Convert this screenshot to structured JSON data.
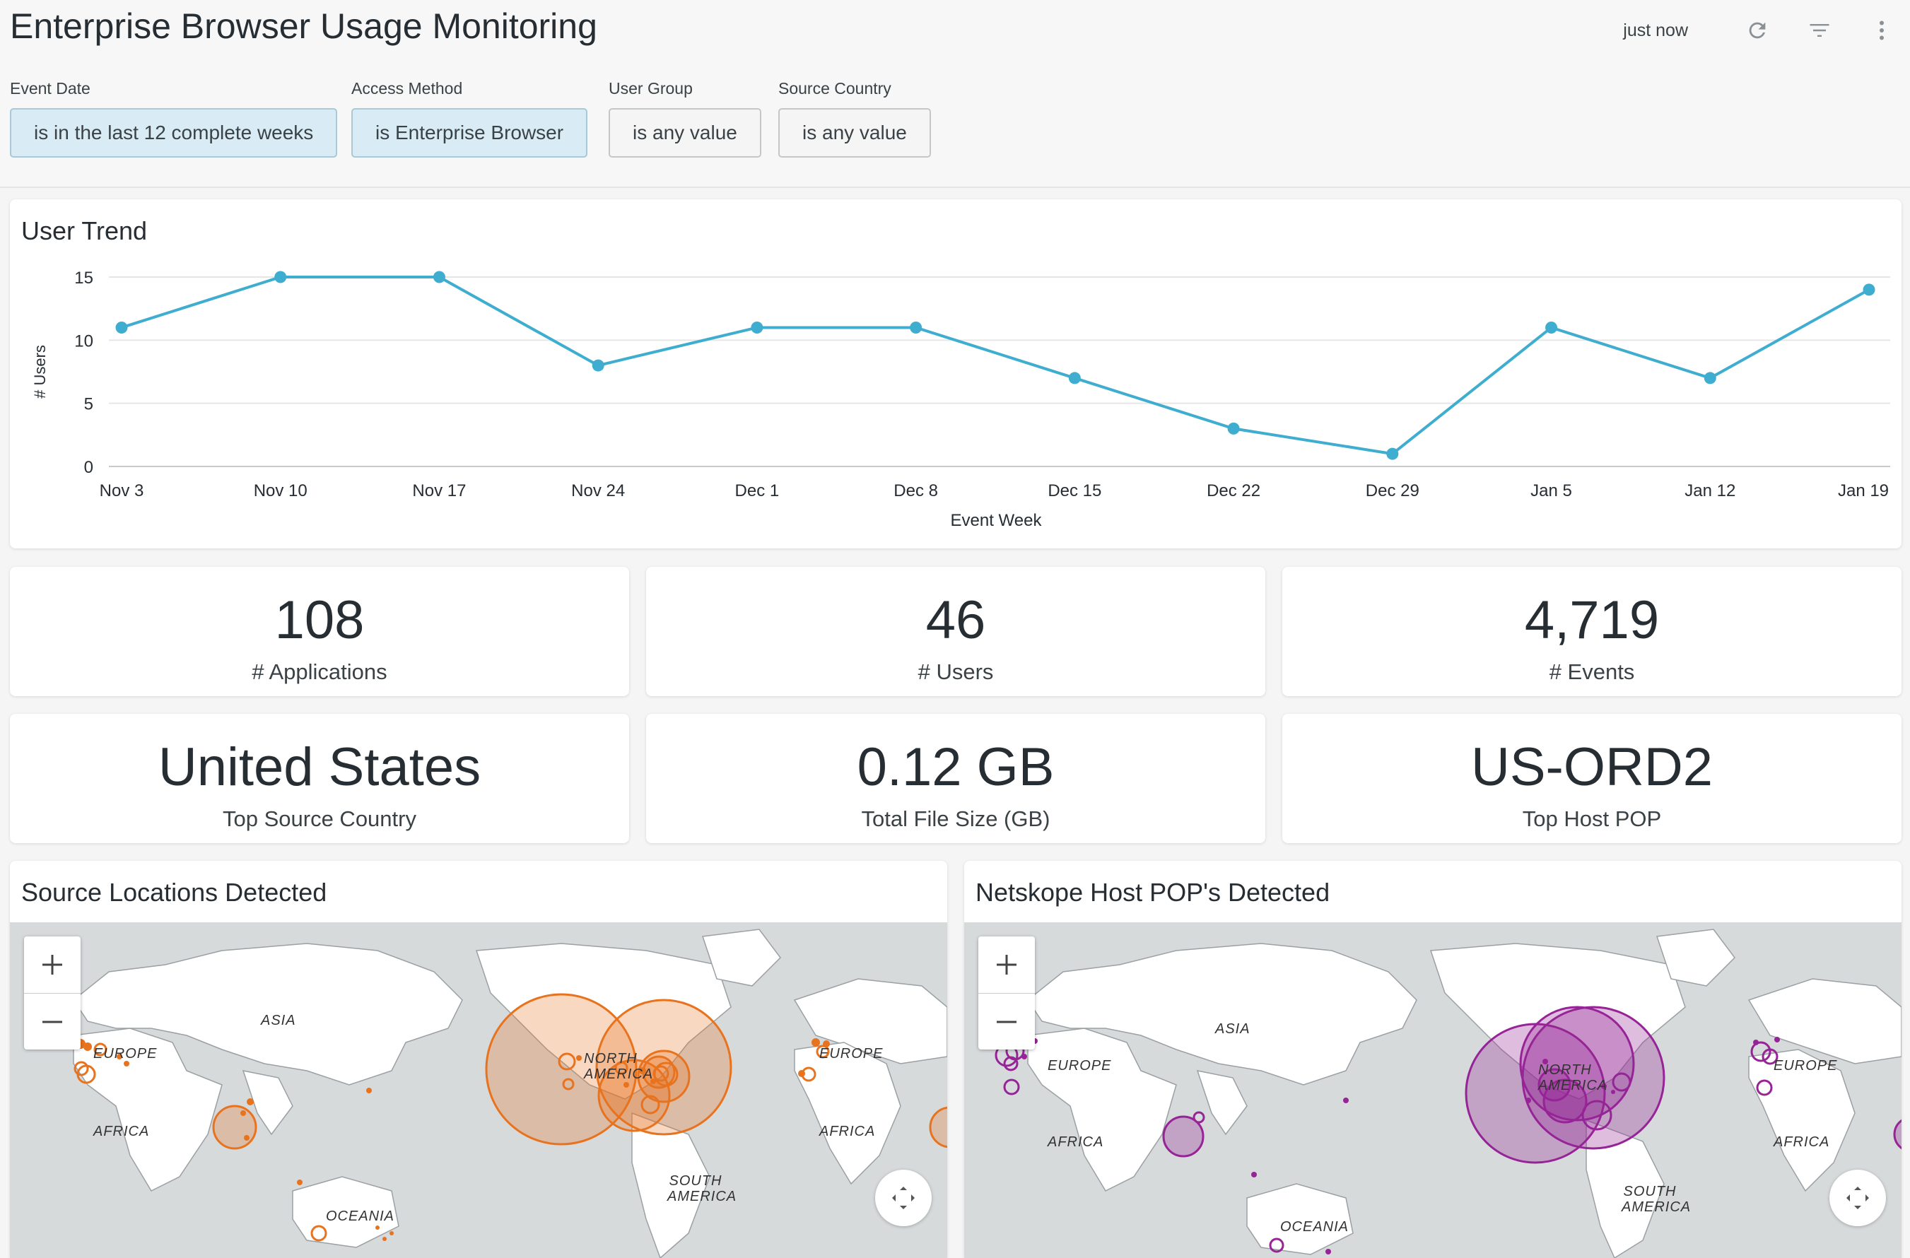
{
  "header": {
    "title": "Enterprise Browser Usage Monitoring",
    "last_updated": "just now",
    "icons": [
      "refresh-icon",
      "filter-icon",
      "more-vertical-icon"
    ]
  },
  "filters": [
    {
      "label": "Event Date",
      "value": "is in the last 12 complete weeks",
      "active": true
    },
    {
      "label": "Access Method",
      "value": "is Enterprise Browser",
      "active": true
    },
    {
      "label": "User Group",
      "value": "is any value",
      "active": false
    },
    {
      "label": "Source Country",
      "value": "is any value",
      "active": false
    }
  ],
  "user_trend": {
    "title": "User Trend"
  },
  "chart_data": {
    "type": "line",
    "title": "User Trend",
    "xlabel": "Event Week",
    "ylabel": "# Users",
    "categories": [
      "Nov 3",
      "Nov 10",
      "Nov 17",
      "Nov 24",
      "Dec 1",
      "Dec 8",
      "Dec 15",
      "Dec 22",
      "Dec 29",
      "Jan 5",
      "Jan 12",
      "Jan 19"
    ],
    "series": [
      {
        "values": [
          11,
          15,
          15,
          8,
          11,
          11,
          7,
          3,
          1,
          11,
          7,
          14
        ]
      }
    ],
    "y_ticks": [
      0,
      5,
      10,
      15
    ],
    "ylim": [
      0,
      15
    ],
    "grid": true,
    "color": "#3fadcf"
  },
  "kpis": [
    {
      "value": "108",
      "label": "# Applications"
    },
    {
      "value": "46",
      "label": "# Users"
    },
    {
      "value": "4,719",
      "label": "# Events"
    },
    {
      "value": "United States",
      "label": "Top Source Country"
    },
    {
      "value": "0.12 GB",
      "label": "Total File Size (GB)"
    },
    {
      "value": "US-ORD2",
      "label": "Top Host POP"
    }
  ],
  "maps": {
    "source": {
      "title": "Source Locations Detected",
      "marker_color": "#e8731f",
      "labels": [
        "ASIA",
        "EUROPE",
        "AFRICA",
        "NORTH AMERICA",
        "SOUTH AMERICA",
        "OCEANIA",
        "EUROPE",
        "AFRICA"
      ]
    },
    "pop": {
      "title": "Netskope Host POP's Detected",
      "marker_color": "#962496",
      "labels": [
        "ASIA",
        "EUROPE",
        "AFRICA",
        "NORTH AMERICA",
        "SOUTH AMERICA",
        "OCEANIA",
        "EUROPE",
        "AFRICA"
      ]
    },
    "zoom_in": "+",
    "zoom_out": "−"
  }
}
